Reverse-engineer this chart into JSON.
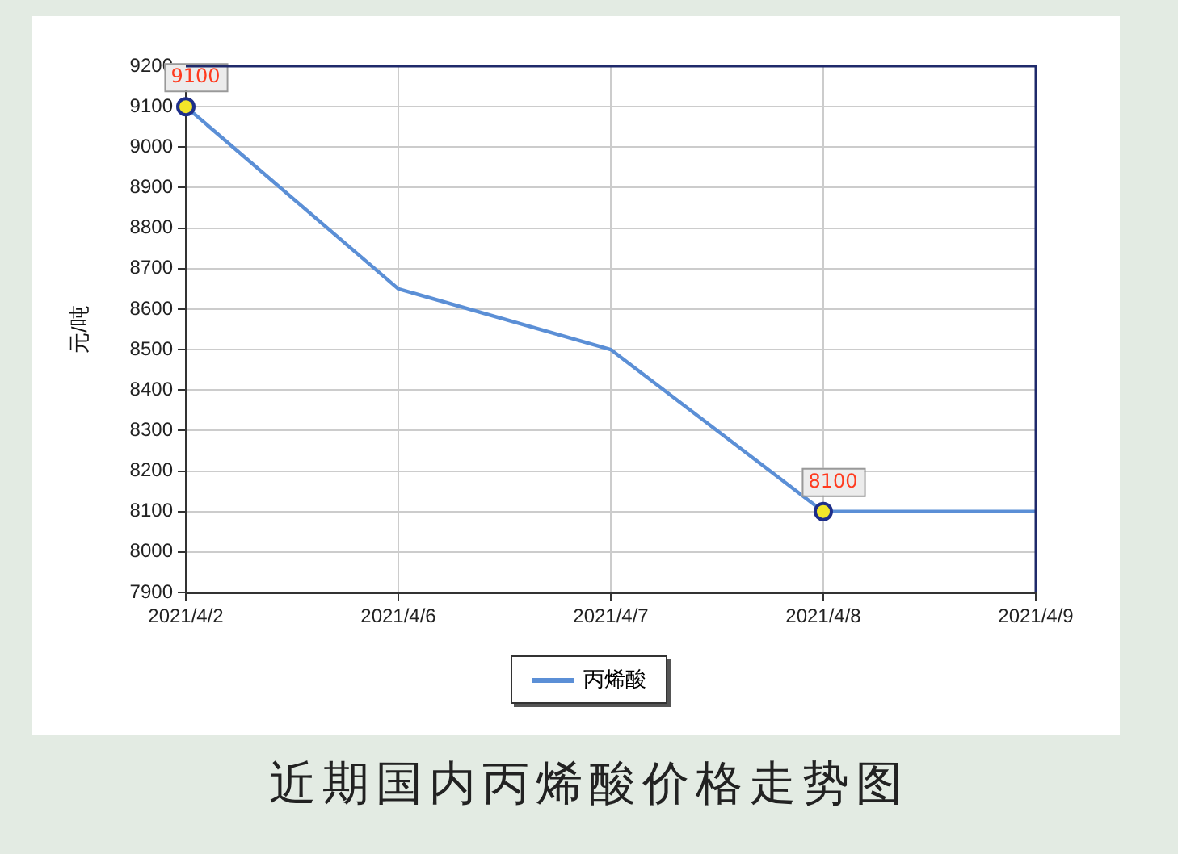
{
  "chart_data": {
    "type": "line",
    "title": "近期国内丙烯酸价格走势图",
    "ylabel": "元/吨",
    "categories": [
      "2021/4/2",
      "2021/4/6",
      "2021/4/7",
      "2021/4/8",
      "2021/4/9"
    ],
    "series": [
      {
        "name": "丙烯酸",
        "color": "#5b8fd6",
        "values": [
          9100,
          8650,
          8500,
          8100,
          8100
        ],
        "value_labels": [
          "9100",
          null,
          null,
          "8100",
          null
        ]
      }
    ],
    "ylim": [
      7900,
      9200
    ],
    "yticks": [
      7900,
      8000,
      8100,
      8200,
      8300,
      8400,
      8500,
      8600,
      8700,
      8800,
      8900,
      9000,
      9100,
      9200
    ],
    "grid": true,
    "legend": "bottom",
    "line_style": "solid"
  }
}
